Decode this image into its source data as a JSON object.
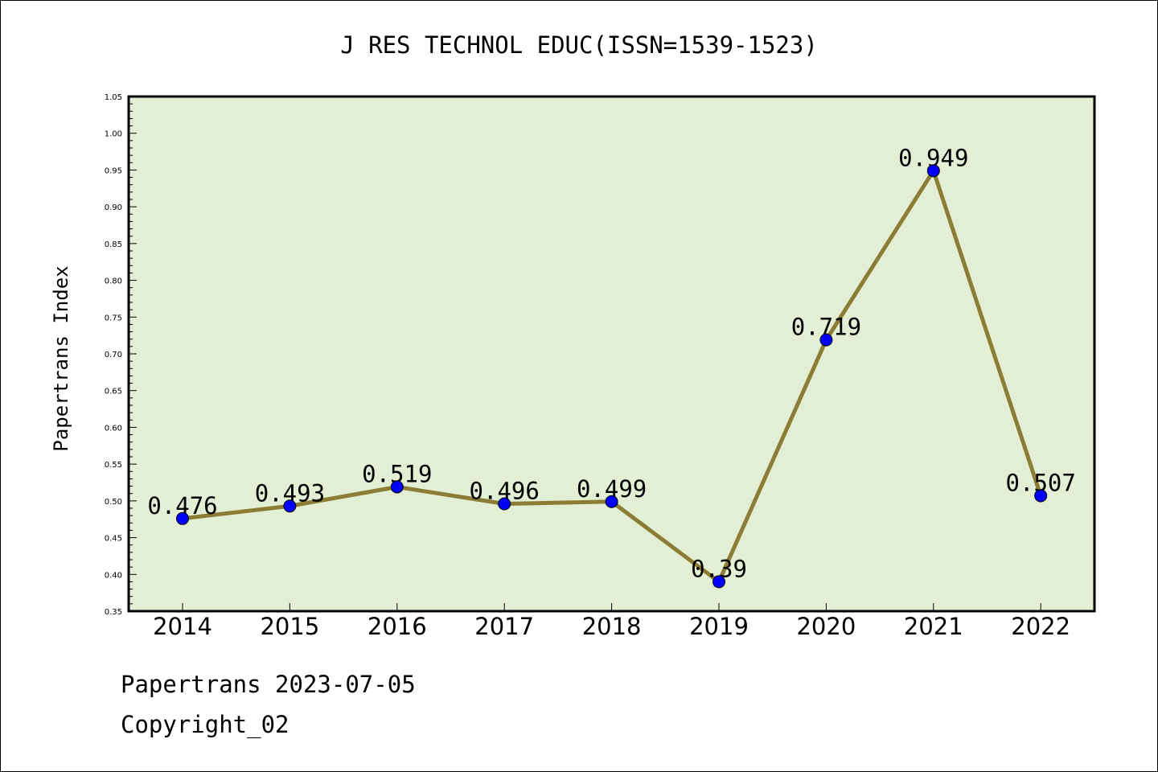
{
  "chart_data": {
    "type": "line",
    "title": "J RES TECHNOL EDUC(ISSN=1539-1523)",
    "xlabel": "",
    "ylabel": "Papertrans Index",
    "categories": [
      "2014",
      "2015",
      "2016",
      "2017",
      "2018",
      "2019",
      "2020",
      "2021",
      "2022"
    ],
    "values": [
      0.476,
      0.493,
      0.519,
      0.496,
      0.499,
      0.39,
      0.719,
      0.949,
      0.507
    ],
    "data_labels": [
      "0.476",
      "0.493",
      "0.519",
      "0.496",
      "0.499",
      "0.39",
      "0.719",
      "0.949",
      "0.507"
    ],
    "ylim": [
      0.35,
      1.05
    ],
    "yticks": [
      "0.35",
      "0.40",
      "0.45",
      "0.50",
      "0.55",
      "0.60",
      "0.65",
      "0.70",
      "0.75",
      "0.80",
      "0.85",
      "0.90",
      "0.95",
      "1.00",
      "1.05"
    ],
    "grid": false,
    "colors": {
      "plot_background": "#e2efd5",
      "line": "#8b7d35",
      "marker": "#0000ff"
    }
  },
  "footer": {
    "line1": "Papertrans 2023-07-05",
    "line2": "Copyright_02"
  }
}
